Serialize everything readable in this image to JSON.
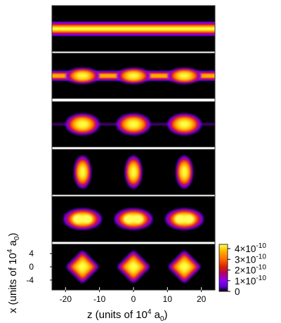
{
  "chart_data": {
    "type": "heatmap",
    "description_panels": [
      {
        "label": "",
        "structure": "uniform band"
      },
      {
        "label": "",
        "structure": "band with three weak bulges"
      },
      {
        "label": "",
        "structure": "three horizontal ellipsoidal droplets"
      },
      {
        "label": "",
        "structure": "three vertical elongated droplets"
      },
      {
        "label": "",
        "structure": "three horizontal double-peaked droplets"
      },
      {
        "label": "",
        "structure": "three square-like droplets"
      }
    ],
    "droplet_centers_z": [
      -15,
      0,
      15
    ],
    "xlabel_parts": {
      "prefix": "z  (units of 10",
      "sup": "4",
      "mid": " a",
      "sub": "0",
      "suffix": ")"
    },
    "ylabel_parts": {
      "prefix": "x  (units of 10",
      "sup": "4",
      "mid": " a",
      "sub": "0",
      "suffix": ")"
    },
    "x_ticks": [
      "-20",
      "-10",
      "0",
      "10",
      "20"
    ],
    "x_tick_values": [
      -20,
      -10,
      0,
      10,
      20
    ],
    "y_ticks": [
      "4",
      "0",
      "-4"
    ],
    "y_tick_values": [
      4,
      0,
      -4
    ],
    "xlim": [
      -24,
      24
    ],
    "ylim": [
      -7,
      7
    ],
    "colorbar": {
      "colormap": "gnuplot",
      "range": [
        0,
        4.4e-10
      ],
      "ticks": [
        {
          "value": 4e-10,
          "mantissa": "4×10",
          "exp": "-10"
        },
        {
          "value": 3e-10,
          "mantissa": "3×10",
          "exp": "-10"
        },
        {
          "value": 2e-10,
          "mantissa": "2×10",
          "exp": "-10"
        },
        {
          "value": 1e-10,
          "mantissa": "1×10",
          "exp": "-10"
        },
        {
          "value": 0,
          "mantissa": "0",
          "exp": ""
        }
      ]
    },
    "colors": {
      "low": "#000000",
      "mid_low": "#7a00ff",
      "mid": "#d42000",
      "mid_high": "#ff7a00",
      "high": "#ffff40"
    }
  }
}
